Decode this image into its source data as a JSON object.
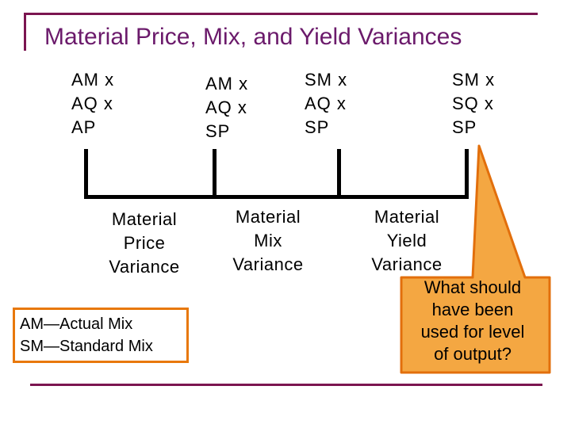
{
  "slide": {
    "title": "Material Price, Mix, and Yield Variances"
  },
  "columns": [
    {
      "lines": [
        "AM x",
        "AQ x",
        "AP"
      ]
    },
    {
      "lines": [
        "AM x",
        "AQ x",
        "SP"
      ]
    },
    {
      "lines": [
        "SM x",
        "AQ x",
        "SP"
      ]
    },
    {
      "lines": [
        "SM x",
        "SQ x",
        "SP"
      ]
    }
  ],
  "variances": [
    {
      "lines": [
        "Material",
        "Price",
        "Variance"
      ]
    },
    {
      "lines": [
        "Material",
        "Mix",
        "Variance"
      ]
    },
    {
      "lines": [
        "Material",
        "Yield",
        "Variance"
      ]
    }
  ],
  "legend": {
    "line1": "AM—Actual Mix",
    "line2": "SM—Standard Mix"
  },
  "callout": {
    "lines": [
      "What should",
      "have been",
      "used for level",
      "of output?"
    ]
  },
  "colors": {
    "title": "#6b1a6b",
    "frame": "#7b1550",
    "legend_border": "#e8780a",
    "callout_fill": "#f4a742",
    "callout_border": "#e26f0c"
  }
}
